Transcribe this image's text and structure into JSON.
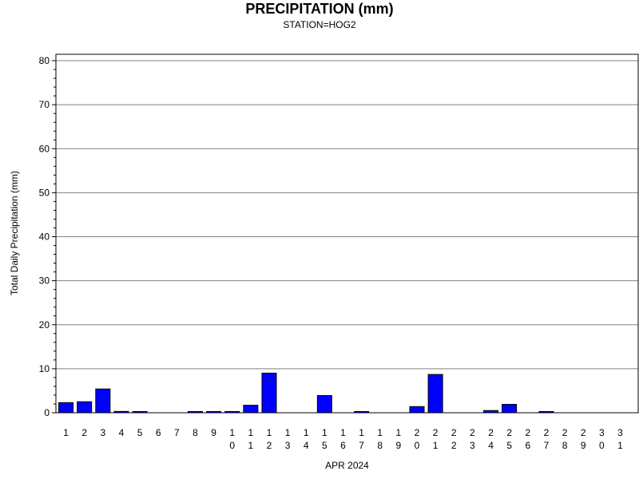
{
  "chart_data": {
    "type": "bar",
    "title": "PRECIPITATION (mm)",
    "subtitle": "STATION=HOG2",
    "xlabel": "APR 2024",
    "ylabel": "Total Daily Precipitation (mm)",
    "ylim": [
      0,
      80
    ],
    "yticks": [
      0,
      10,
      20,
      30,
      40,
      50,
      60,
      70,
      80
    ],
    "grid": true,
    "bar_color": "#0000ff",
    "categories": [
      "1",
      "2",
      "3",
      "4",
      "5",
      "6",
      "7",
      "8",
      "9",
      "10",
      "11",
      "12",
      "13",
      "14",
      "15",
      "16",
      "17",
      "18",
      "19",
      "20",
      "21",
      "22",
      "23",
      "24",
      "25",
      "26",
      "27",
      "28",
      "29",
      "30",
      "31"
    ],
    "values": [
      2.3,
      2.5,
      5.4,
      0.3,
      0.1,
      0,
      0,
      0.1,
      0.1,
      0.1,
      1.7,
      9.0,
      0,
      0,
      3.9,
      0,
      0.1,
      0,
      0,
      1.4,
      8.7,
      0,
      0,
      0.5,
      1.9,
      0,
      0.1,
      0,
      0,
      0,
      0
    ]
  }
}
